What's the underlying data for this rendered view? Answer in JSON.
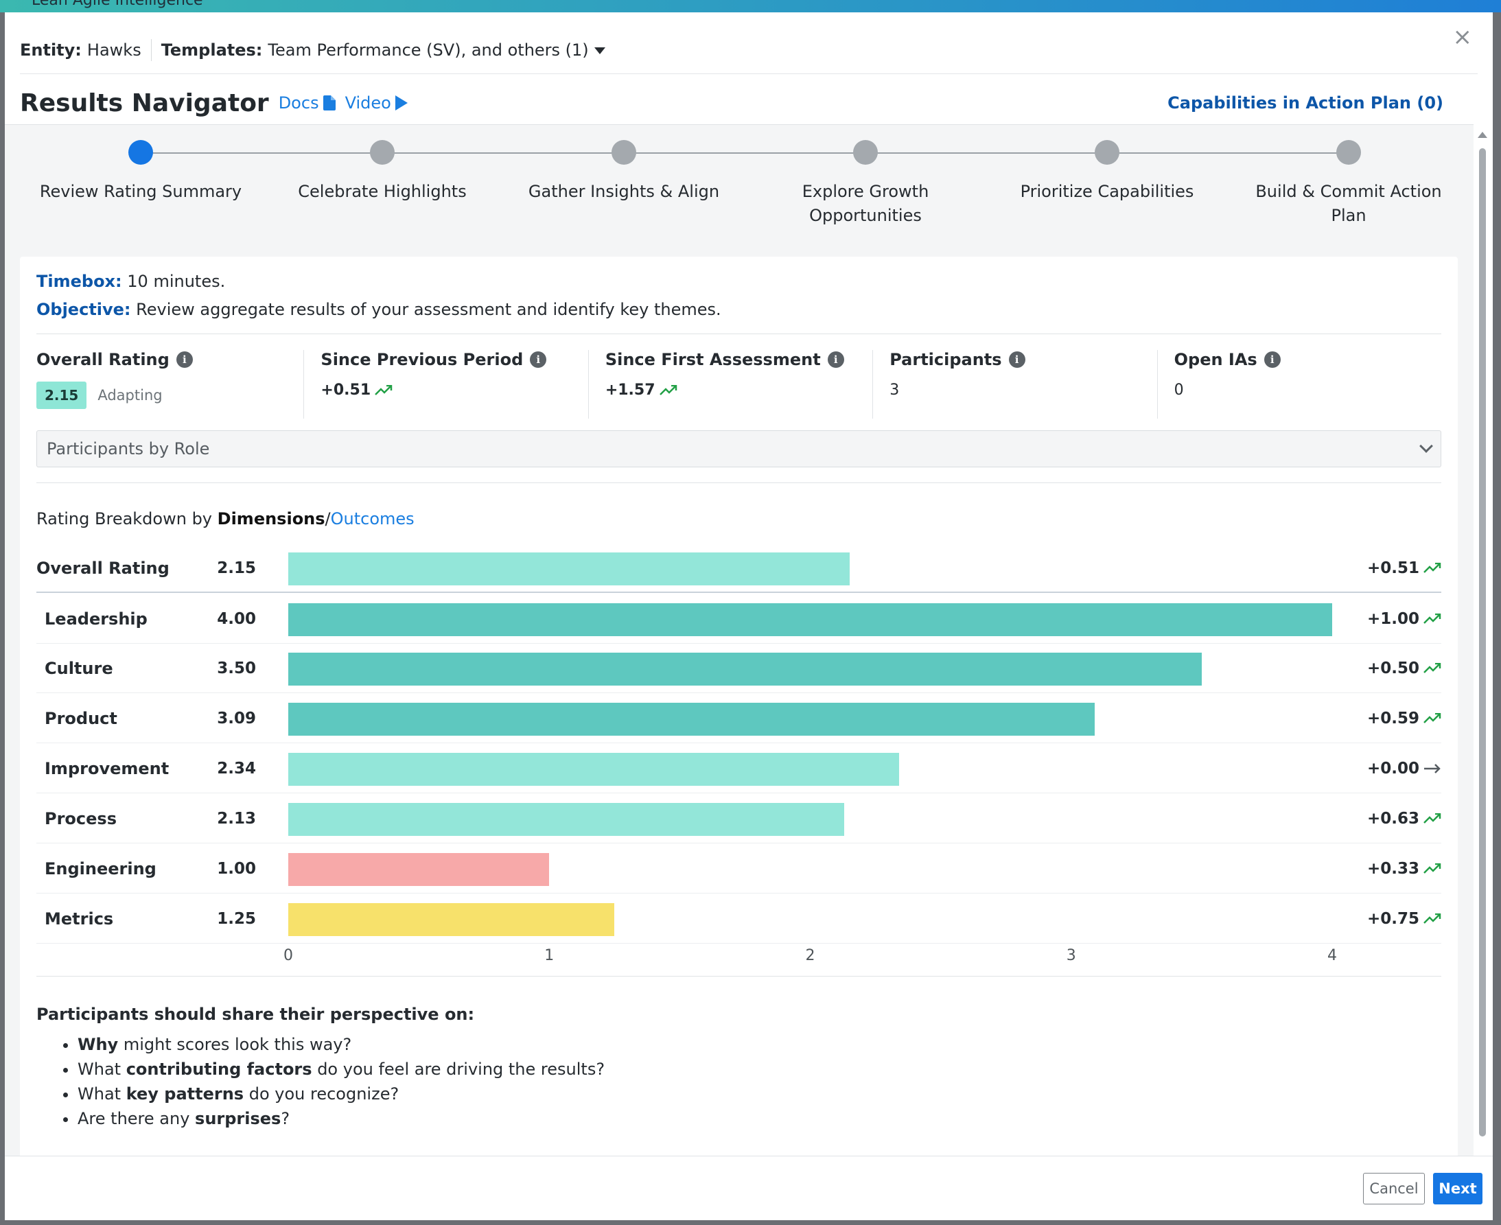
{
  "background": {
    "window_title": "Lean Agile Intelligence"
  },
  "meta": {
    "entity_label": "Entity:",
    "entity_value": "Hawks",
    "templates_label": "Templates:",
    "templates_value": "Team Performance (SV), and others (1)"
  },
  "header": {
    "title": "Results Navigator",
    "docs_label": "Docs",
    "video_label": "Video",
    "capabilities_link": "Capabilities in Action Plan (0)",
    "close_label": "×"
  },
  "steps": [
    {
      "label": "Review Rating Summary",
      "active": true
    },
    {
      "label": "Celebrate Highlights",
      "active": false
    },
    {
      "label": "Gather Insights & Align",
      "active": false
    },
    {
      "label": "Explore Growth Opportunities",
      "active": false
    },
    {
      "label": "Prioritize Capabilities",
      "active": false
    },
    {
      "label": "Build & Commit Action Plan",
      "active": false
    }
  ],
  "intro": {
    "timebox_label": "Timebox:",
    "timebox_value": "10 minutes.",
    "objective_label": "Objective:",
    "objective_value": "Review aggregate results of your assessment and identify key themes."
  },
  "stats": {
    "overall": {
      "label": "Overall Rating",
      "value": "2.15",
      "level": "Adapting"
    },
    "previous": {
      "label": "Since Previous Period",
      "value": "+0.51"
    },
    "first": {
      "label": "Since First Assessment",
      "value": "+1.57"
    },
    "participants": {
      "label": "Participants",
      "value": "3"
    },
    "open_ias": {
      "label": "Open IAs",
      "value": "0"
    }
  },
  "accordion": {
    "label": "Participants by Role"
  },
  "breakdown": {
    "prefix": "Rating Breakdown by",
    "dimensions": "Dimensions",
    "slash": "/",
    "outcomes": "Outcomes"
  },
  "colors": {
    "bar_light": "#93e6d9",
    "bar_strong": "#5ec8bf",
    "bar_red": "#f7a9a9",
    "bar_yellow": "#f7e16b",
    "trend_up": "#22a046",
    "trend_flat": "#555b60",
    "accent": "#1576e3"
  },
  "chart_data": {
    "type": "bar",
    "orientation": "horizontal",
    "categories": [
      "Overall Rating",
      "Leadership",
      "Culture",
      "Product",
      "Improvement",
      "Process",
      "Engineering",
      "Metrics"
    ],
    "values": [
      2.15,
      4.0,
      3.5,
      3.09,
      2.34,
      2.13,
      1.0,
      1.25
    ],
    "value_labels": [
      "2.15",
      "4.00",
      "3.50",
      "3.09",
      "2.34",
      "2.13",
      "1.00",
      "1.25"
    ],
    "changes": [
      "+0.51",
      "+1.00",
      "+0.50",
      "+0.59",
      "+0.00",
      "+0.63",
      "+0.33",
      "+0.75"
    ],
    "trends": [
      "up",
      "up",
      "up",
      "up",
      "flat",
      "up",
      "up",
      "up"
    ],
    "bar_colors": [
      "light",
      "strong",
      "strong",
      "strong",
      "light",
      "light",
      "red",
      "yellow"
    ],
    "xlim": [
      0,
      4
    ],
    "xticks": [
      "0",
      "1",
      "2",
      "3",
      "4"
    ],
    "grid": false
  },
  "questions": {
    "heading": "Participants should share their perspective on:",
    "items": [
      {
        "bold": "Why",
        "pre": "",
        "post": " might scores look this way?"
      },
      {
        "pre": "What ",
        "bold": "contributing factors",
        "post": " do you feel are driving the results?"
      },
      {
        "pre": "What ",
        "bold": "key patterns",
        "post": " do you recognize?"
      },
      {
        "pre": "Are there any ",
        "bold": "surprises",
        "post": "?"
      }
    ]
  },
  "footer": {
    "cancel_label": "Cancel",
    "next_label": "Next"
  }
}
